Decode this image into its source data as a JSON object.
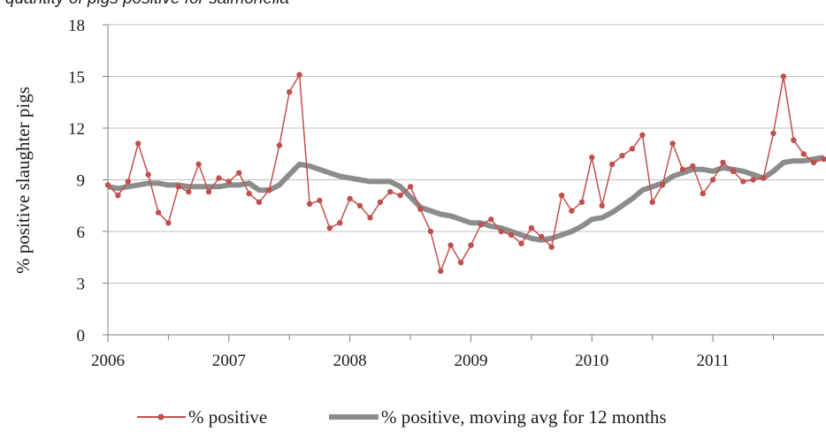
{
  "header": {
    "caption_fragment": "quantity of pigs positive for salmonella"
  },
  "chart_data": {
    "type": "line",
    "title": "",
    "xlabel": "",
    "ylabel": "% positive slaughter pigs",
    "ylim": [
      0,
      18
    ],
    "yticks": [
      "0",
      "3",
      "6",
      "9",
      "12",
      "15",
      "18"
    ],
    "xlim": [
      2006,
      2011.92
    ],
    "xticks": [
      "2006",
      "2007",
      "2008",
      "2009",
      "2010",
      "2011"
    ],
    "grid": "horizontal",
    "legend_position": "bottom",
    "colors": {
      "series1": "#c0504d",
      "series2": "#8c8c8c",
      "grid": "#bfbfbf",
      "axis": "#7f7f7f"
    },
    "x": [
      2006.0,
      2006.083,
      2006.167,
      2006.25,
      2006.333,
      2006.417,
      2006.5,
      2006.583,
      2006.667,
      2006.75,
      2006.833,
      2006.917,
      2007.0,
      2007.083,
      2007.167,
      2007.25,
      2007.333,
      2007.417,
      2007.5,
      2007.583,
      2007.667,
      2007.75,
      2007.833,
      2007.917,
      2008.0,
      2008.083,
      2008.167,
      2008.25,
      2008.333,
      2008.417,
      2008.5,
      2008.583,
      2008.667,
      2008.75,
      2008.833,
      2008.917,
      2009.0,
      2009.083,
      2009.167,
      2009.25,
      2009.333,
      2009.417,
      2009.5,
      2009.583,
      2009.667,
      2009.75,
      2009.833,
      2009.917,
      2010.0,
      2010.083,
      2010.167,
      2010.25,
      2010.333,
      2010.417,
      2010.5,
      2010.583,
      2010.667,
      2010.75,
      2010.833,
      2010.917,
      2011.0,
      2011.083,
      2011.167,
      2011.25,
      2011.333,
      2011.417,
      2011.5,
      2011.583,
      2011.667,
      2011.75,
      2011.833,
      2011.917
    ],
    "series": [
      {
        "name": "% positive",
        "values": [
          8.7,
          8.1,
          8.9,
          11.1,
          9.3,
          7.1,
          6.5,
          8.6,
          8.3,
          9.9,
          8.3,
          9.1,
          8.9,
          9.4,
          8.2,
          7.7,
          8.4,
          11.0,
          14.1,
          15.1,
          7.6,
          7.8,
          6.2,
          6.5,
          7.9,
          7.5,
          6.8,
          7.7,
          8.3,
          8.1,
          8.6,
          7.3,
          6.0,
          3.7,
          5.2,
          4.2,
          5.2,
          6.4,
          6.7,
          6.0,
          5.8,
          5.3,
          6.2,
          5.7,
          5.1,
          8.1,
          7.2,
          7.7,
          10.3,
          7.5,
          9.9,
          10.4,
          10.8,
          11.6,
          7.7,
          8.7,
          11.1,
          9.6,
          9.8,
          8.2,
          9.0,
          10.0,
          9.5,
          8.9,
          9.0,
          9.1,
          11.7,
          15.0,
          11.3,
          10.5,
          10.0,
          10.2
        ]
      },
      {
        "name": "% positive, moving avg for 12 months",
        "values": [
          8.6,
          8.5,
          8.6,
          8.7,
          8.8,
          8.8,
          8.7,
          8.7,
          8.6,
          8.6,
          8.6,
          8.6,
          8.7,
          8.7,
          8.8,
          8.4,
          8.4,
          8.7,
          9.3,
          9.9,
          9.8,
          9.6,
          9.4,
          9.2,
          9.1,
          9.0,
          8.9,
          8.9,
          8.9,
          8.6,
          8.0,
          7.4,
          7.2,
          7.0,
          6.9,
          6.7,
          6.5,
          6.5,
          6.3,
          6.2,
          6.0,
          5.8,
          5.6,
          5.5,
          5.6,
          5.8,
          6.0,
          6.3,
          6.7,
          6.8,
          7.1,
          7.5,
          7.9,
          8.4,
          8.6,
          8.8,
          9.2,
          9.4,
          9.6,
          9.6,
          9.5,
          9.7,
          9.6,
          9.5,
          9.3,
          9.1,
          9.5,
          10.0,
          10.1,
          10.1,
          10.2,
          10.3
        ]
      }
    ]
  }
}
